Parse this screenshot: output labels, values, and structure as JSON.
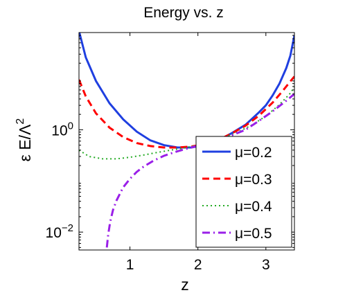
{
  "chart_data": {
    "type": "line",
    "title": "Energy vs. z",
    "xlabel": "z",
    "ylabel_main": "ε E/Λ",
    "ylabel_sup": "2",
    "xlim": [
      0.25,
      3.42
    ],
    "ylim_log10": [
      -2.35,
      1.9
    ],
    "yscale": "log",
    "grid": false,
    "legend": "bottom-right",
    "x_ticks": [
      {
        "value": 1,
        "label": "1"
      },
      {
        "value": 2,
        "label": "2"
      },
      {
        "value": 3,
        "label": "3"
      }
    ],
    "y_ticks": [
      {
        "exp": 0,
        "base": "10",
        "sup": "0"
      },
      {
        "exp": -2,
        "base": "10",
        "sup": "−2"
      }
    ],
    "series": [
      {
        "name": "μ=0.2",
        "color": "#1f3fe0",
        "dash": "solid",
        "points": [
          [
            0.25,
            85
          ],
          [
            0.35,
            26
          ],
          [
            0.5,
            9.0
          ],
          [
            0.7,
            3.3
          ],
          [
            0.9,
            1.6
          ],
          [
            1.1,
            0.92
          ],
          [
            1.3,
            0.62
          ],
          [
            1.5,
            0.5
          ],
          [
            1.7,
            0.45
          ],
          [
            1.9,
            0.45
          ],
          [
            2.1,
            0.5
          ],
          [
            2.3,
            0.62
          ],
          [
            2.5,
            0.86
          ],
          [
            2.7,
            1.25
          ],
          [
            2.9,
            2.2
          ],
          [
            3.0,
            3.0
          ],
          [
            3.1,
            4.7
          ],
          [
            3.2,
            8.0
          ],
          [
            3.3,
            16
          ],
          [
            3.36,
            28
          ],
          [
            3.42,
            70
          ]
        ]
      },
      {
        "name": "μ=0.3",
        "color": "#ff0000",
        "dash": "dashed",
        "points": [
          [
            0.25,
            9.5
          ],
          [
            0.35,
            4.5
          ],
          [
            0.5,
            2.1
          ],
          [
            0.7,
            1.1
          ],
          [
            0.9,
            0.72
          ],
          [
            1.1,
            0.55
          ],
          [
            1.3,
            0.48
          ],
          [
            1.5,
            0.45
          ],
          [
            1.7,
            0.45
          ],
          [
            1.9,
            0.47
          ],
          [
            2.1,
            0.52
          ],
          [
            2.3,
            0.63
          ],
          [
            2.5,
            0.85
          ],
          [
            2.7,
            1.2
          ],
          [
            2.9,
            1.9
          ],
          [
            3.1,
            3.4
          ],
          [
            3.25,
            5.8
          ],
          [
            3.35,
            8.5
          ],
          [
            3.42,
            11
          ]
        ]
      },
      {
        "name": "μ=0.4",
        "color": "#22aa22",
        "dash": "dotted",
        "points": [
          [
            0.25,
            0.4
          ],
          [
            0.4,
            0.3
          ],
          [
            0.6,
            0.27
          ],
          [
            0.8,
            0.27
          ],
          [
            1.0,
            0.29
          ],
          [
            1.2,
            0.32
          ],
          [
            1.4,
            0.36
          ],
          [
            1.6,
            0.4
          ],
          [
            1.8,
            0.44
          ],
          [
            2.0,
            0.5
          ],
          [
            2.2,
            0.58
          ],
          [
            2.4,
            0.72
          ],
          [
            2.6,
            0.92
          ],
          [
            2.8,
            1.25
          ],
          [
            3.0,
            1.85
          ],
          [
            3.2,
            3.1
          ],
          [
            3.35,
            5.0
          ],
          [
            3.42,
            6.8
          ]
        ]
      },
      {
        "name": "μ=0.5",
        "color": "#9a1fe8",
        "dash": "dashdot",
        "points": [
          [
            0.66,
            0.005
          ],
          [
            0.68,
            0.009
          ],
          [
            0.71,
            0.016
          ],
          [
            0.75,
            0.027
          ],
          [
            0.8,
            0.041
          ],
          [
            0.9,
            0.075
          ],
          [
            1.0,
            0.11
          ],
          [
            1.1,
            0.15
          ],
          [
            1.2,
            0.19
          ],
          [
            1.35,
            0.25
          ],
          [
            1.5,
            0.31
          ],
          [
            1.7,
            0.38
          ],
          [
            1.9,
            0.45
          ],
          [
            2.1,
            0.52
          ],
          [
            2.3,
            0.62
          ],
          [
            2.5,
            0.78
          ],
          [
            2.7,
            1.0
          ],
          [
            2.9,
            1.5
          ],
          [
            3.1,
            2.3
          ],
          [
            3.3,
            3.7
          ],
          [
            3.42,
            5.0
          ]
        ]
      }
    ]
  }
}
